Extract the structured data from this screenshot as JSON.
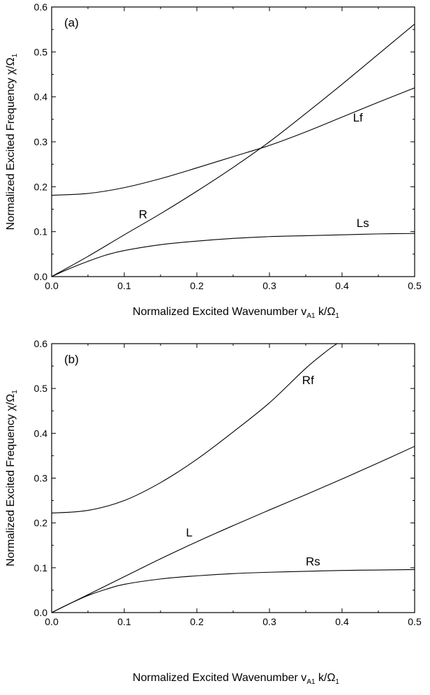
{
  "chart_data": [
    {
      "type": "line",
      "panel_label": "(a)",
      "xlabel": "Normalized Excited Wavenumber v_A1 k/Ω_1",
      "ylabel": "Normalized Excited Frequency χ/Ω_1",
      "xlim": [
        0.0,
        0.5
      ],
      "ylim": [
        0.0,
        0.6
      ],
      "xticks": [
        "0.0",
        "0.1",
        "0.2",
        "0.3",
        "0.4",
        "0.5"
      ],
      "yticks": [
        "0.0",
        "0.1",
        "0.2",
        "0.3",
        "0.4",
        "0.5",
        "0.6"
      ],
      "grid": false,
      "series": [
        {
          "name": "R",
          "label_at": [
            0.12,
            0.13
          ],
          "x": [
            0.0,
            0.05,
            0.1,
            0.15,
            0.2,
            0.25,
            0.3,
            0.35,
            0.4,
            0.45,
            0.5
          ],
          "y": [
            0.0,
            0.045,
            0.093,
            0.14,
            0.19,
            0.243,
            0.3,
            0.363,
            0.428,
            0.495,
            0.562
          ]
        },
        {
          "name": "Lf",
          "label_at": [
            0.415,
            0.345
          ],
          "x": [
            0.0,
            0.05,
            0.1,
            0.15,
            0.2,
            0.25,
            0.3,
            0.35,
            0.4,
            0.45,
            0.5
          ],
          "y": [
            0.181,
            0.185,
            0.198,
            0.218,
            0.242,
            0.267,
            0.292,
            0.322,
            0.355,
            0.388,
            0.42
          ]
        },
        {
          "name": "Ls",
          "label_at": [
            0.42,
            0.11
          ],
          "x": [
            0.0,
            0.025,
            0.05,
            0.075,
            0.1,
            0.15,
            0.2,
            0.25,
            0.3,
            0.35,
            0.4,
            0.45,
            0.5
          ],
          "y": [
            0.0,
            0.018,
            0.034,
            0.048,
            0.058,
            0.071,
            0.079,
            0.085,
            0.089,
            0.091,
            0.093,
            0.095,
            0.096
          ]
        }
      ]
    },
    {
      "type": "line",
      "panel_label": "(b)",
      "xlabel": "Normalized Excited Wavenumber v_A1 k/Ω_1",
      "ylabel": "Normalized Excited Frequency χ/Ω_1",
      "xlim": [
        0.0,
        0.5
      ],
      "ylim": [
        0.0,
        0.6
      ],
      "xticks": [
        "0.0",
        "0.1",
        "0.2",
        "0.3",
        "0.4",
        "0.5"
      ],
      "yticks": [
        "0.0",
        "0.1",
        "0.2",
        "0.3",
        "0.4",
        "0.5",
        "0.6"
      ],
      "grid": false,
      "series": [
        {
          "name": "Rf",
          "label_at": [
            0.345,
            0.51
          ],
          "x": [
            0.0,
            0.05,
            0.1,
            0.15,
            0.2,
            0.25,
            0.3,
            0.35,
            0.38,
            0.393
          ],
          "y": [
            0.222,
            0.228,
            0.25,
            0.29,
            0.342,
            0.403,
            0.468,
            0.545,
            0.585,
            0.6
          ]
        },
        {
          "name": "L",
          "label_at": [
            0.185,
            0.17
          ],
          "x": [
            0.0,
            0.05,
            0.1,
            0.15,
            0.2,
            0.25,
            0.3,
            0.35,
            0.4,
            0.45,
            0.5
          ],
          "y": [
            0.0,
            0.04,
            0.08,
            0.12,
            0.158,
            0.194,
            0.229,
            0.263,
            0.298,
            0.334,
            0.371
          ]
        },
        {
          "name": "Rs",
          "label_at": [
            0.35,
            0.105
          ],
          "x": [
            0.0,
            0.025,
            0.05,
            0.075,
            0.1,
            0.15,
            0.2,
            0.25,
            0.3,
            0.35,
            0.4,
            0.45,
            0.5
          ],
          "y": [
            0.0,
            0.02,
            0.038,
            0.052,
            0.063,
            0.075,
            0.082,
            0.087,
            0.09,
            0.092,
            0.094,
            0.095,
            0.096
          ]
        }
      ]
    }
  ]
}
